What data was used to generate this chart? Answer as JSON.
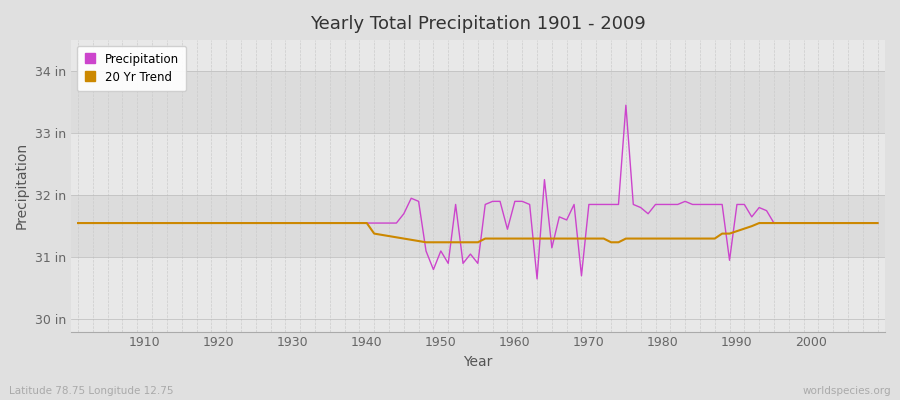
{
  "title": "Yearly Total Precipitation 1901 - 2009",
  "xlabel": "Year",
  "ylabel": "Precipitation",
  "subtitle": "Latitude 78.75 Longitude 12.75",
  "watermark": "worldspecies.org",
  "fig_bg_color": "#e0e0e0",
  "plot_bg_color": "#e8e8e8",
  "band_colors": [
    "#e8e8e8",
    "#dcdcdc"
  ],
  "grid_color": "#cccccc",
  "precip_color": "#cc44cc",
  "trend_color": "#cc8800",
  "ylim": [
    29.8,
    34.5
  ],
  "yticks": [
    30,
    31,
    32,
    33,
    34
  ],
  "ytick_labels": [
    "30 in",
    "31 in",
    "32 in",
    "33 in",
    "34 in"
  ],
  "xlim": [
    1900,
    2010
  ],
  "xticks": [
    1910,
    1920,
    1930,
    1940,
    1950,
    1960,
    1970,
    1980,
    1990,
    2000
  ],
  "years": [
    1901,
    1902,
    1903,
    1904,
    1905,
    1906,
    1907,
    1908,
    1909,
    1910,
    1911,
    1912,
    1913,
    1914,
    1915,
    1916,
    1917,
    1918,
    1919,
    1920,
    1921,
    1922,
    1923,
    1924,
    1925,
    1926,
    1927,
    1928,
    1929,
    1930,
    1931,
    1932,
    1933,
    1934,
    1935,
    1936,
    1937,
    1938,
    1939,
    1940,
    1941,
    1942,
    1943,
    1944,
    1945,
    1946,
    1947,
    1948,
    1949,
    1950,
    1951,
    1952,
    1953,
    1954,
    1955,
    1956,
    1957,
    1958,
    1959,
    1960,
    1961,
    1962,
    1963,
    1964,
    1965,
    1966,
    1967,
    1968,
    1969,
    1970,
    1971,
    1972,
    1973,
    1974,
    1975,
    1976,
    1977,
    1978,
    1979,
    1980,
    1981,
    1982,
    1983,
    1984,
    1985,
    1986,
    1987,
    1988,
    1989,
    1990,
    1991,
    1992,
    1993,
    1994,
    1995,
    1996,
    1997,
    1998,
    1999,
    2000,
    2001,
    2002,
    2003,
    2004,
    2005,
    2006,
    2007,
    2008,
    2009
  ],
  "precip": [
    31.55,
    31.55,
    31.55,
    31.55,
    31.55,
    31.55,
    31.55,
    31.55,
    31.55,
    31.55,
    31.55,
    31.55,
    31.55,
    31.55,
    31.55,
    31.55,
    31.55,
    31.55,
    31.55,
    31.55,
    31.55,
    31.55,
    31.55,
    31.55,
    31.55,
    31.55,
    31.55,
    31.55,
    31.55,
    31.55,
    31.55,
    31.55,
    31.55,
    31.55,
    31.55,
    31.55,
    31.55,
    31.55,
    31.55,
    31.55,
    31.55,
    31.55,
    31.55,
    31.55,
    31.7,
    31.95,
    31.9,
    31.1,
    30.8,
    31.1,
    30.9,
    31.85,
    30.9,
    31.05,
    30.9,
    31.85,
    31.9,
    31.9,
    31.45,
    31.9,
    31.9,
    31.85,
    30.65,
    32.25,
    31.15,
    31.65,
    31.6,
    31.85,
    30.7,
    31.85,
    31.85,
    31.85,
    31.85,
    31.85,
    33.45,
    31.85,
    31.8,
    31.7,
    31.85,
    31.85,
    31.85,
    31.85,
    31.9,
    31.85,
    31.85,
    31.85,
    31.85,
    31.85,
    30.95,
    31.85,
    31.85,
    31.65,
    31.8,
    31.75,
    31.55,
    31.55,
    31.55,
    31.55,
    31.55,
    31.55,
    31.55,
    31.55,
    31.55,
    31.55,
    31.55,
    31.55,
    31.55,
    31.55,
    31.55
  ],
  "trend": [
    31.55,
    31.55,
    31.55,
    31.55,
    31.55,
    31.55,
    31.55,
    31.55,
    31.55,
    31.55,
    31.55,
    31.55,
    31.55,
    31.55,
    31.55,
    31.55,
    31.55,
    31.55,
    31.55,
    31.55,
    31.55,
    31.55,
    31.55,
    31.55,
    31.55,
    31.55,
    31.55,
    31.55,
    31.55,
    31.55,
    31.55,
    31.55,
    31.55,
    31.55,
    31.55,
    31.55,
    31.55,
    31.55,
    31.55,
    31.55,
    31.38,
    31.36,
    31.34,
    31.32,
    31.3,
    31.28,
    31.26,
    31.24,
    31.24,
    31.24,
    31.24,
    31.24,
    31.24,
    31.24,
    31.24,
    31.3,
    31.3,
    31.3,
    31.3,
    31.3,
    31.3,
    31.3,
    31.3,
    31.3,
    31.3,
    31.3,
    31.3,
    31.3,
    31.3,
    31.3,
    31.3,
    31.3,
    31.24,
    31.24,
    31.3,
    31.3,
    31.3,
    31.3,
    31.3,
    31.3,
    31.3,
    31.3,
    31.3,
    31.3,
    31.3,
    31.3,
    31.3,
    31.38,
    31.38,
    31.42,
    31.46,
    31.5,
    31.55,
    31.55,
    31.55,
    31.55,
    31.55,
    31.55,
    31.55,
    31.55,
    31.55,
    31.55,
    31.55,
    31.55,
    31.55,
    31.55,
    31.55,
    31.55,
    31.55
  ]
}
